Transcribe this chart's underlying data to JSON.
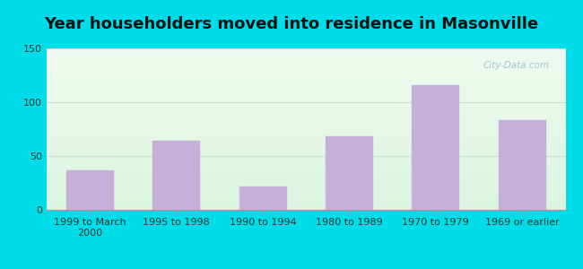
{
  "title": "Year householders moved into residence in Masonville",
  "categories": [
    "1999 to March\n2000",
    "1995 to 1998",
    "1990 to 1994",
    "1980 to 1989",
    "1970 to 1979",
    "1969 or earlier"
  ],
  "values": [
    37,
    64,
    22,
    68,
    116,
    83
  ],
  "bar_color": "#c4b0d8",
  "bar_edgecolor": "#c4b0d8",
  "ylim": [
    0,
    150
  ],
  "yticks": [
    0,
    50,
    100,
    150
  ],
  "background_outer": "#00dde8",
  "bg_top_left": "#e8f5e8",
  "bg_top_right": "#f5f8f5",
  "bg_bottom": "#d8f0e0",
  "grid_color": "#ccddcc",
  "title_fontsize": 13,
  "tick_fontsize": 8,
  "watermark": "City-Data.com",
  "watermark_color": "#99bbcc"
}
